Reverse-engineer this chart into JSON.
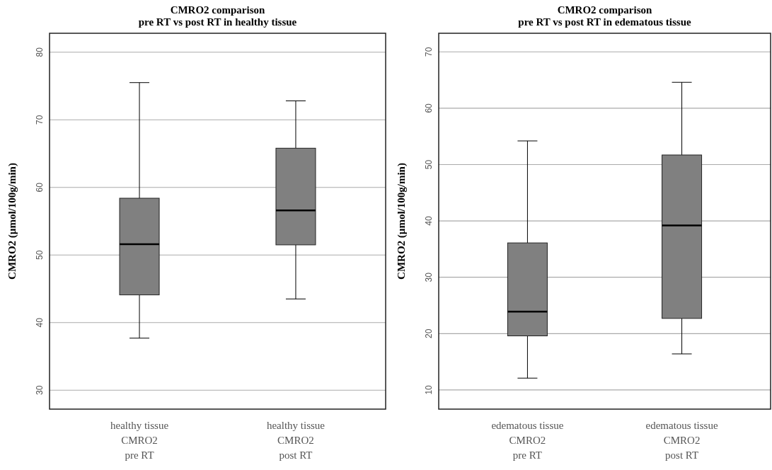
{
  "chart_data": [
    {
      "type": "box",
      "title": "CMRO2 comparison\npre RT vs post RT in healthy tissue",
      "ylabel": "CMRO2 (µmol/100g/min)",
      "categories": [
        "healthy tissue\nCMRO2\npre RT",
        "healthy tissue\nCMRO2\npost RT"
      ],
      "color": "#808080",
      "ylim": [
        27.2,
        82.8
      ],
      "yticks": [
        30,
        40,
        50,
        60,
        70,
        80
      ],
      "grid": "y",
      "boxes": [
        {
          "low": 37.7,
          "q1": 44.1,
          "median": 51.6,
          "q3": 58.4,
          "high": 75.5
        },
        {
          "low": 43.5,
          "q1": 51.5,
          "median": 56.6,
          "q3": 65.8,
          "high": 72.8
        }
      ]
    },
    {
      "type": "box",
      "title": "CMRO2 comparison\npre RT vs post RT in edematous tissue",
      "ylabel": "CMRO2 (µmol/100g/min)",
      "categories": [
        "edematous tissue\nCMRO2\npre RT",
        "edematous tissue\nCMRO2\npost RT"
      ],
      "color": "#808080",
      "ylim": [
        6.6,
        73.3
      ],
      "yticks": [
        10,
        20,
        30,
        40,
        50,
        60,
        70
      ],
      "grid": "y",
      "boxes": [
        {
          "low": 12.1,
          "q1": 19.6,
          "median": 23.9,
          "q3": 36.1,
          "high": 54.2
        },
        {
          "low": 16.4,
          "q1": 22.7,
          "median": 39.2,
          "q3": 51.7,
          "high": 64.6
        }
      ]
    }
  ]
}
